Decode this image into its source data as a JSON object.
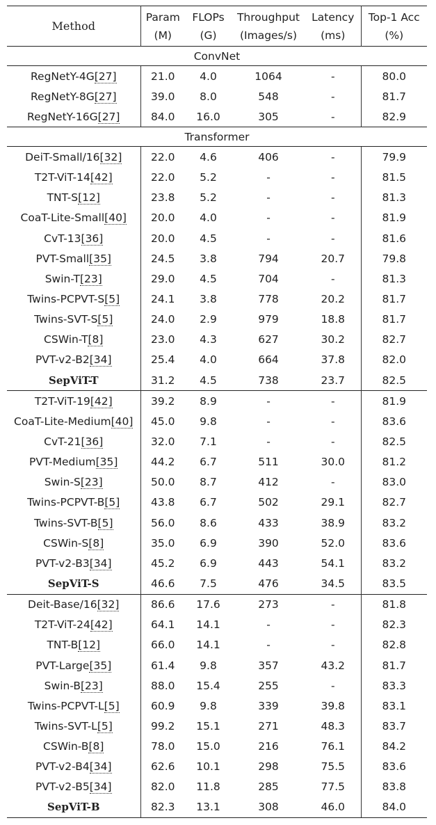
{
  "header": {
    "method": "Method",
    "param": [
      "Param",
      "(M)"
    ],
    "flops": [
      "FLOPs",
      "(G)"
    ],
    "throughput": [
      "Throughput",
      "(Images/s)"
    ],
    "latency": [
      "Latency",
      "(ms)"
    ],
    "top1": [
      "Top-1 Acc",
      "(%)"
    ]
  },
  "sections": [
    {
      "label": "ConvNet",
      "groups": [
        [
          {
            "name": "RegNetY-4G",
            "ref": "[27]",
            "param": "21.0",
            "flops": "4.0",
            "throughput": "1064",
            "latency": "-",
            "top1": "80.0"
          },
          {
            "name": "RegNetY-8G",
            "ref": "[27]",
            "param": "39.0",
            "flops": "8.0",
            "throughput": "548",
            "latency": "-",
            "top1": "81.7"
          },
          {
            "name": "RegNetY-16G",
            "ref": "[27]",
            "param": "84.0",
            "flops": "16.0",
            "throughput": "305",
            "latency": "-",
            "top1": "82.9"
          }
        ]
      ]
    },
    {
      "label": "Transformer",
      "groups": [
        [
          {
            "name": "DeiT-Small/16",
            "ref": "[32]",
            "param": "22.0",
            "flops": "4.6",
            "throughput": "406",
            "latency": "-",
            "top1": "79.9"
          },
          {
            "name": "T2T-ViT-14",
            "ref": "[42]",
            "param": "22.0",
            "flops": "5.2",
            "throughput": "-",
            "latency": "-",
            "top1": "81.5"
          },
          {
            "name": "TNT-S",
            "ref": "[12]",
            "param": "23.8",
            "flops": "5.2",
            "throughput": "-",
            "latency": "-",
            "top1": "81.3"
          },
          {
            "name": "CoaT-Lite-Small",
            "ref": "[40]",
            "param": "20.0",
            "flops": "4.0",
            "throughput": "-",
            "latency": "-",
            "top1": "81.9"
          },
          {
            "name": "CvT-13",
            "ref": "[36]",
            "param": "20.0",
            "flops": "4.5",
            "throughput": "-",
            "latency": "-",
            "top1": "81.6"
          },
          {
            "name": "PVT-Small",
            "ref": "[35]",
            "param": "24.5",
            "flops": "3.8",
            "throughput": "794",
            "latency": "20.7",
            "top1": "79.8"
          },
          {
            "name": "Swin-T",
            "ref": "[23]",
            "param": "29.0",
            "flops": "4.5",
            "throughput": "704",
            "latency": "-",
            "top1": "81.3"
          },
          {
            "name": "Twins-PCPVT-S",
            "ref": "[5]",
            "param": "24.1",
            "flops": "3.8",
            "throughput": "778",
            "latency": "20.2",
            "top1": "81.7"
          },
          {
            "name": "Twins-SVT-S",
            "ref": "[5]",
            "param": "24.0",
            "flops": "2.9",
            "throughput": "979",
            "latency": "18.8",
            "top1": "81.7"
          },
          {
            "name": "CSWin-T",
            "ref": "[8]",
            "param": "23.0",
            "flops": "4.3",
            "throughput": "627",
            "latency": "30.2",
            "top1": "82.7"
          },
          {
            "name": "PVT-v2-B2",
            "ref": "[34]",
            "param": "25.4",
            "flops": "4.0",
            "throughput": "664",
            "latency": "37.8",
            "top1": "82.0"
          },
          {
            "name": "SepViT-T",
            "ref": "",
            "ours": true,
            "param": "31.2",
            "flops": "4.5",
            "throughput": "738",
            "latency": "23.7",
            "top1": "82.5"
          }
        ],
        [
          {
            "name": "T2T-ViT-19",
            "ref": "[42]",
            "param": "39.2",
            "flops": "8.9",
            "throughput": "-",
            "latency": "-",
            "top1": "81.9"
          },
          {
            "name": "CoaT-Lite-Medium",
            "ref": "[40]",
            "param": "45.0",
            "flops": "9.8",
            "throughput": "-",
            "latency": "-",
            "top1": "83.6"
          },
          {
            "name": "CvT-21",
            "ref": "[36]",
            "param": "32.0",
            "flops": "7.1",
            "throughput": "-",
            "latency": "-",
            "top1": "82.5"
          },
          {
            "name": "PVT-Medium",
            "ref": "[35]",
            "param": "44.2",
            "flops": "6.7",
            "throughput": "511",
            "latency": "30.0",
            "top1": "81.2"
          },
          {
            "name": "Swin-S",
            "ref": "[23]",
            "param": "50.0",
            "flops": "8.7",
            "throughput": "412",
            "latency": "-",
            "top1": "83.0"
          },
          {
            "name": "Twins-PCPVT-B",
            "ref": "[5]",
            "param": "43.8",
            "flops": "6.7",
            "throughput": "502",
            "latency": "29.1",
            "top1": "82.7"
          },
          {
            "name": "Twins-SVT-B",
            "ref": "[5]",
            "param": "56.0",
            "flops": "8.6",
            "throughput": "433",
            "latency": "38.9",
            "top1": "83.2"
          },
          {
            "name": "CSWin-S",
            "ref": "[8]",
            "param": "35.0",
            "flops": "6.9",
            "throughput": "390",
            "latency": "52.0",
            "top1": "83.6"
          },
          {
            "name": "PVT-v2-B3",
            "ref": "[34]",
            "param": "45.2",
            "flops": "6.9",
            "throughput": "443",
            "latency": "54.1",
            "top1": "83.2"
          },
          {
            "name": "SepViT-S",
            "ref": "",
            "ours": true,
            "param": "46.6",
            "flops": "7.5",
            "throughput": "476",
            "latency": "34.5",
            "top1": "83.5"
          }
        ],
        [
          {
            "name": "Deit-Base/16",
            "ref": "[32]",
            "param": "86.6",
            "flops": "17.6",
            "throughput": "273",
            "latency": "-",
            "top1": "81.8"
          },
          {
            "name": "T2T-ViT-24",
            "ref": "[42]",
            "param": "64.1",
            "flops": "14.1",
            "throughput": "-",
            "latency": "-",
            "top1": "82.3"
          },
          {
            "name": "TNT-B",
            "ref": "[12]",
            "param": "66.0",
            "flops": "14.1",
            "throughput": "-",
            "latency": "-",
            "top1": "82.8"
          },
          {
            "name": "PVT-Large",
            "ref": "[35]",
            "param": "61.4",
            "flops": "9.8",
            "throughput": "357",
            "latency": "43.2",
            "top1": "81.7"
          },
          {
            "name": "Swin-B",
            "ref": "[23]",
            "param": "88.0",
            "flops": "15.4",
            "throughput": "255",
            "latency": "-",
            "top1": "83.3"
          },
          {
            "name": "Twins-PCPVT-L",
            "ref": "[5]",
            "param": "60.9",
            "flops": "9.8",
            "throughput": "339",
            "latency": "39.8",
            "top1": "83.1"
          },
          {
            "name": "Twins-SVT-L",
            "ref": "[5]",
            "param": "99.2",
            "flops": "15.1",
            "throughput": "271",
            "latency": "48.3",
            "top1": "83.7"
          },
          {
            "name": "CSWin-B",
            "ref": "[8]",
            "param": "78.0",
            "flops": "15.0",
            "throughput": "216",
            "latency": "76.1",
            "top1": "84.2"
          },
          {
            "name": "PVT-v2-B4",
            "ref": "[34]",
            "param": "62.6",
            "flops": "10.1",
            "throughput": "298",
            "latency": "75.5",
            "top1": "83.6"
          },
          {
            "name": "PVT-v2-B5",
            "ref": "[34]",
            "param": "82.0",
            "flops": "11.8",
            "throughput": "285",
            "latency": "77.5",
            "top1": "83.8"
          },
          {
            "name": "SepViT-B",
            "ref": "",
            "ours": true,
            "param": "82.3",
            "flops": "13.1",
            "throughput": "308",
            "latency": "46.0",
            "top1": "84.0"
          }
        ]
      ]
    }
  ]
}
